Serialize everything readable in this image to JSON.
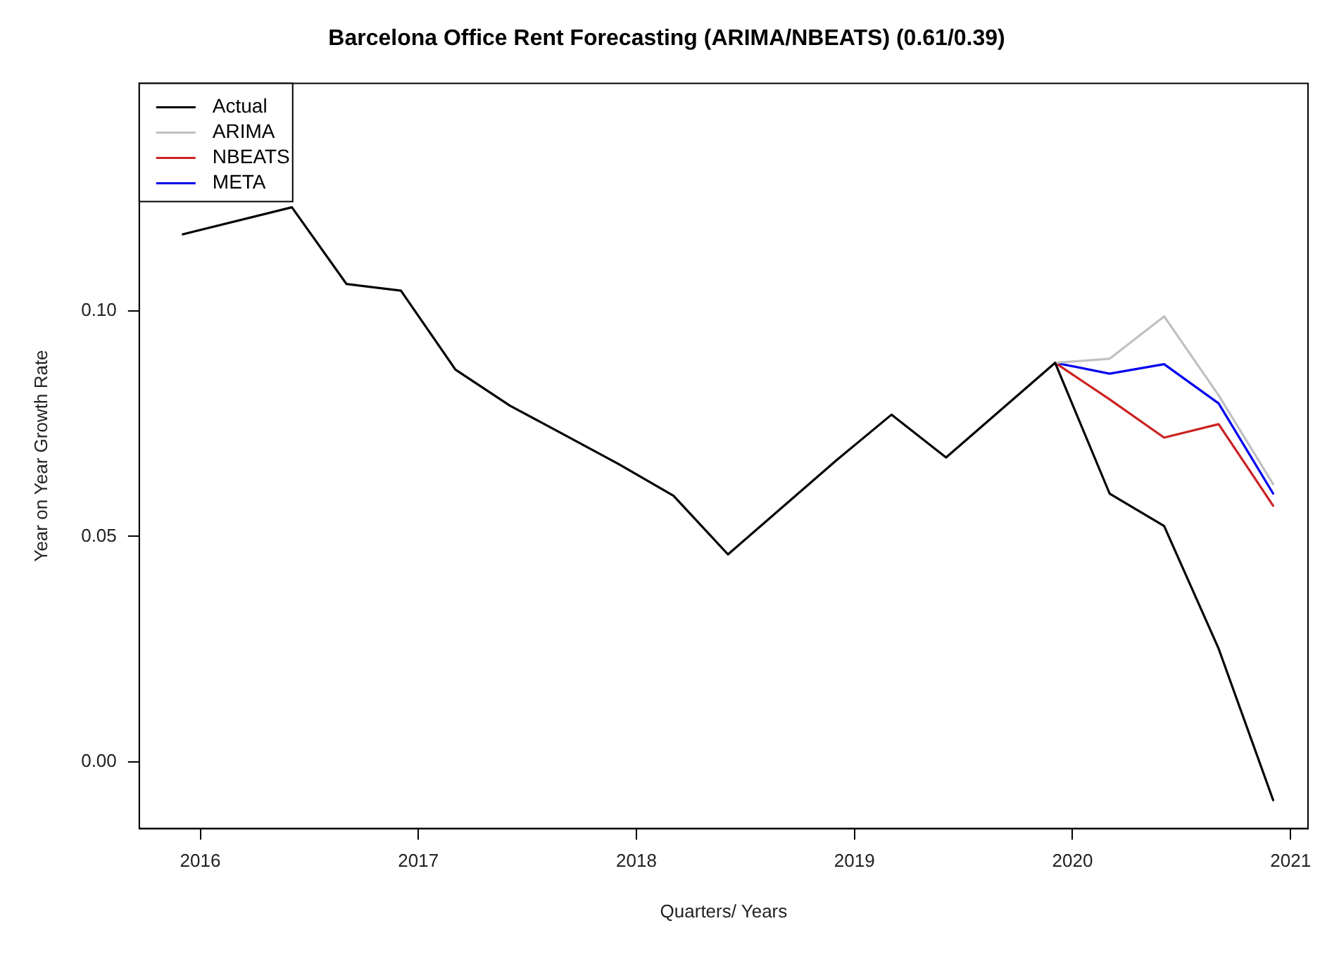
{
  "chart_data": {
    "type": "line",
    "title": "Barcelona Office Rent Forecasting (ARIMA/NBEATS) (0.61/0.39)",
    "xlabel": "Quarters/ Years",
    "ylabel": "Year on Year Growth Rate",
    "xlim": [
      2015.72,
      2021.08
    ],
    "xticks": [
      2016,
      2017,
      2018,
      2019,
      2020,
      2021
    ],
    "ylim": [
      -0.0148,
      0.1505
    ],
    "yticks": [
      {
        "value": 0,
        "label": "0.00"
      },
      {
        "value": 0.05,
        "label": "0.05"
      },
      {
        "value": 0.1,
        "label": "0.10"
      }
    ],
    "grid": false,
    "legend": "top left",
    "marker": "none",
    "line_style": "solid",
    "series": [
      {
        "name": "Actual",
        "color": "#000000",
        "x": [
          2015.92,
          2016.17,
          2016.42,
          2016.67,
          2016.92,
          2017.17,
          2017.42,
          2017.67,
          2017.92,
          2018.17,
          2018.42,
          2018.67,
          2018.92,
          2019.17,
          2019.42,
          2019.67,
          2019.92,
          2020.17,
          2020.42,
          2020.67,
          2020.92
        ],
        "values": [
          0.117,
          null,
          0.123,
          0.106,
          0.1045,
          0.087,
          0.079,
          0.0725,
          0.066,
          0.059,
          0.046,
          0.0565,
          0.067,
          0.077,
          0.0675,
          0.078,
          0.0885,
          0.0595,
          0.0523,
          0.0251,
          -0.0085
        ]
      },
      {
        "name": "ARIMA",
        "color": "#c0c0c0",
        "x": [
          2019.92,
          2020.17,
          2020.42,
          2020.67,
          2020.92
        ],
        "values": [
          0.0885,
          0.0894,
          0.0988,
          0.0813,
          0.0616
        ]
      },
      {
        "name": "NBEATS",
        "color": "#cc2222",
        "x": [
          2019.92,
          2020.17,
          2020.42,
          2020.67,
          2020.92
        ],
        "values": [
          0.0885,
          0.0804,
          0.0719,
          0.0749,
          0.0568
        ]
      },
      {
        "name": "META",
        "color": "#0000ee",
        "x": [
          2019.92,
          2020.17,
          2020.42,
          2020.67,
          2020.92
        ],
        "values": [
          0.0885,
          0.0861,
          0.0882,
          0.0795,
          0.0595
        ]
      }
    ]
  }
}
